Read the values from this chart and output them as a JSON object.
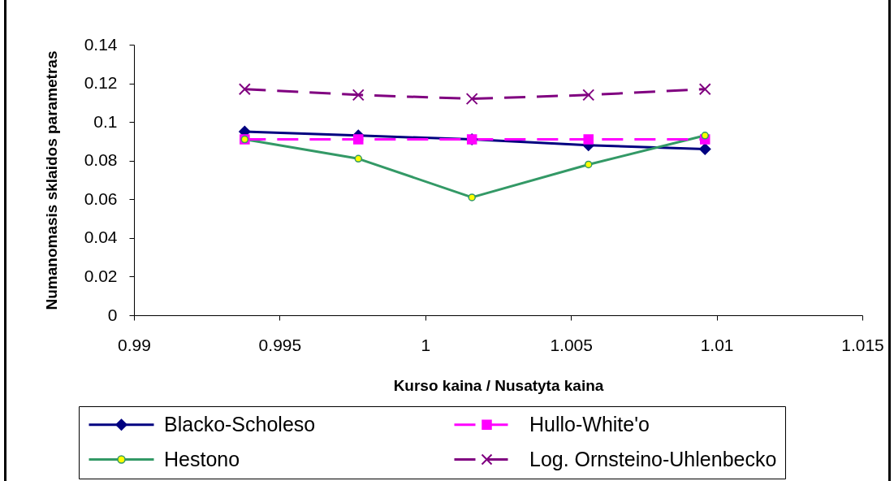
{
  "chart_data": {
    "type": "line",
    "xlabel": "Kurso kaina / Nusatyta kaina",
    "ylabel": "Numanomasis sklaidos parametras",
    "x": [
      0.9938,
      0.9977,
      1.0016,
      1.0056,
      1.0096
    ],
    "xlim": [
      0.99,
      1.015
    ],
    "xticks": [
      0.99,
      0.995,
      1,
      1.005,
      1.01,
      1.015
    ],
    "ylim": [
      0,
      0.14
    ],
    "yticks": [
      0,
      0.02,
      0.04,
      0.06,
      0.08,
      0.1,
      0.12,
      0.14
    ],
    "legend": "bottom",
    "series": [
      {
        "name": "Blacko-Scholeso",
        "color": "#000080",
        "marker": "diamond",
        "line_style": "solid",
        "values": [
          0.095,
          0.093,
          0.091,
          0.088,
          0.086
        ]
      },
      {
        "name": "Hullo-White'o",
        "color": "#ff00ff",
        "marker": "square",
        "line_style": "dashed",
        "values": [
          0.091,
          0.091,
          0.091,
          0.091,
          0.091
        ]
      },
      {
        "name": "Hestono",
        "color": "#339966",
        "marker": "circle",
        "line_style": "solid",
        "values": [
          0.091,
          0.081,
          0.061,
          0.078,
          0.093
        ]
      },
      {
        "name": "Log. Ornsteino-Uhlenbecko",
        "color": "#800080",
        "marker": "cross",
        "line_style": "dashed",
        "values": [
          0.117,
          0.114,
          0.112,
          0.114,
          0.117
        ]
      }
    ]
  }
}
